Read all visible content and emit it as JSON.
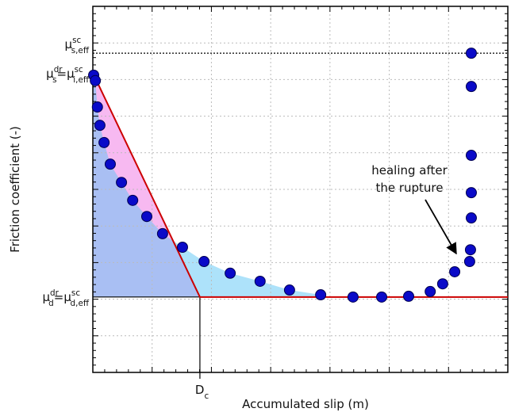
{
  "chart_data": {
    "type": "scatter",
    "x_label": "Accumulated slip (m)",
    "y_label": "Friction coefficient (-)",
    "xlim": [
      0,
      1
    ],
    "ylim": [
      0,
      1
    ],
    "grid": true,
    "series": [
      {
        "color": "#0a0ac8",
        "x": [
          0.002,
          0.006,
          0.011,
          0.017,
          0.027,
          0.042,
          0.069,
          0.096,
          0.13,
          0.168,
          0.216,
          0.268,
          0.331,
          0.403,
          0.474,
          0.549,
          0.627,
          0.696,
          0.761,
          0.813,
          0.843,
          0.872,
          0.908,
          0.91,
          0.912,
          0.912,
          0.912,
          0.912,
          0.912
        ],
        "values": [
          0.812,
          0.797,
          0.725,
          0.675,
          0.628,
          0.569,
          0.519,
          0.47,
          0.426,
          0.379,
          0.342,
          0.303,
          0.271,
          0.249,
          0.225,
          0.212,
          0.206,
          0.206,
          0.208,
          0.221,
          0.242,
          0.275,
          0.303,
          0.335,
          0.422,
          0.491,
          0.593,
          0.781,
          0.872
        ]
      }
    ],
    "slip_weakening_color": "#cc0000",
    "mu_static_sc": {
      "value": 0.872,
      "label": [
        {
          "sym": "μ",
          "sup": "sc",
          "sub": "s,eff"
        }
      ]
    },
    "mu_static": {
      "value": 0.818,
      "label": [
        {
          "sym": "μ",
          "sup": "dr",
          "sub": "s"
        },
        {
          "sym": "="
        },
        {
          "sym": "μ",
          "sup": "sc",
          "sub": "i,eff"
        }
      ]
    },
    "mu_dynamic": {
      "value": 0.206,
      "label": [
        {
          "sym": "μ",
          "sup": "dr",
          "sub": "d"
        },
        {
          "sym": "="
        },
        {
          "sym": "μ",
          "sup": "sc",
          "sub": "d,eff"
        }
      ]
    },
    "dc": {
      "value": 0.258,
      "label": [
        {
          "sym": "D",
          "sub": "c"
        }
      ]
    },
    "annotation": {
      "lines": [
        "healing after",
        "the rupture"
      ]
    }
  }
}
